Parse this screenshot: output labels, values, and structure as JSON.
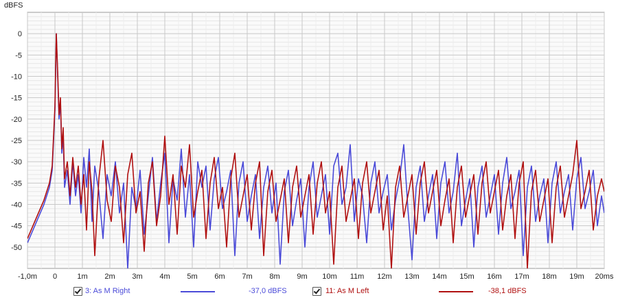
{
  "chart_data": {
    "type": "line",
    "ylabel": "dBFS",
    "xlabel": "",
    "xlim": [
      -1.0,
      20.0
    ],
    "ylim": [
      -55,
      5
    ],
    "x_ticks": [
      -1,
      0,
      1,
      2,
      3,
      4,
      5,
      6,
      7,
      8,
      9,
      10,
      11,
      12,
      13,
      14,
      15,
      16,
      17,
      18,
      19,
      20
    ],
    "x_tick_labels": [
      "-1,0m",
      "0",
      "1m",
      "2m",
      "3m",
      "4m",
      "5m",
      "6m",
      "7m",
      "8m",
      "9m",
      "10m",
      "11m",
      "12m",
      "13m",
      "14m",
      "15m",
      "16m",
      "17m",
      "18m",
      "19m",
      "20ms"
    ],
    "y_ticks": [
      0,
      -5,
      -10,
      -15,
      -20,
      -25,
      -30,
      -35,
      -40,
      -45,
      -50
    ],
    "y_tick_labels": [
      "0",
      "-5",
      "-10",
      "-15",
      "-20",
      "-25",
      "-30",
      "-35",
      "-40",
      "-45",
      "-50"
    ],
    "grid": true,
    "series": [
      {
        "name": "3: As M Right",
        "color": "#4a4ad8",
        "legend_value": "-37,0 dBFS",
        "points": [
          [
            -1.0,
            -49
          ],
          [
            -0.8,
            -46
          ],
          [
            -0.6,
            -43
          ],
          [
            -0.4,
            -40
          ],
          [
            -0.2,
            -36
          ],
          [
            -0.1,
            -32
          ],
          [
            0.0,
            -18
          ],
          [
            0.05,
            0
          ],
          [
            0.1,
            -10
          ],
          [
            0.15,
            -20
          ],
          [
            0.2,
            -16
          ],
          [
            0.25,
            -28
          ],
          [
            0.3,
            -24
          ],
          [
            0.35,
            -36
          ],
          [
            0.45,
            -32
          ],
          [
            0.55,
            -40
          ],
          [
            0.65,
            -30
          ],
          [
            0.75,
            -38
          ],
          [
            0.85,
            -33
          ],
          [
            0.95,
            -42
          ],
          [
            1.05,
            -29
          ],
          [
            1.15,
            -36
          ],
          [
            1.25,
            -27
          ],
          [
            1.35,
            -44
          ],
          [
            1.45,
            -31
          ],
          [
            1.6,
            -37
          ],
          [
            1.75,
            -48
          ],
          [
            1.9,
            -33
          ],
          [
            2.05,
            -38
          ],
          [
            2.2,
            -30
          ],
          [
            2.35,
            -42
          ],
          [
            2.5,
            -35
          ],
          [
            2.65,
            -55
          ],
          [
            2.8,
            -36
          ],
          [
            2.95,
            -41
          ],
          [
            3.1,
            -32
          ],
          [
            3.25,
            -47
          ],
          [
            3.4,
            -38
          ],
          [
            3.55,
            -29
          ],
          [
            3.7,
            -44
          ],
          [
            3.85,
            -35
          ],
          [
            4.0,
            -28
          ],
          [
            4.15,
            -49
          ],
          [
            4.3,
            -34
          ],
          [
            4.45,
            -39
          ],
          [
            4.6,
            -27
          ],
          [
            4.75,
            -43
          ],
          [
            4.9,
            -33
          ],
          [
            5.05,
            -50
          ],
          [
            5.2,
            -30
          ],
          [
            5.35,
            -36
          ],
          [
            5.5,
            -31
          ],
          [
            5.65,
            -46
          ],
          [
            5.8,
            -34
          ],
          [
            5.95,
            -29
          ],
          [
            6.1,
            -41
          ],
          [
            6.25,
            -37
          ],
          [
            6.4,
            -32
          ],
          [
            6.55,
            -52
          ],
          [
            6.7,
            -35
          ],
          [
            6.85,
            -30
          ],
          [
            7.0,
            -44
          ],
          [
            7.15,
            -38
          ],
          [
            7.3,
            -33
          ],
          [
            7.45,
            -48
          ],
          [
            7.6,
            -36
          ],
          [
            7.75,
            -31
          ],
          [
            7.9,
            -42
          ],
          [
            8.05,
            -35
          ],
          [
            8.2,
            -54
          ],
          [
            8.35,
            -37
          ],
          [
            8.5,
            -32
          ],
          [
            8.65,
            -45
          ],
          [
            8.8,
            -39
          ],
          [
            8.95,
            -34
          ],
          [
            9.1,
            -50
          ],
          [
            9.25,
            -36
          ],
          [
            9.4,
            -30
          ],
          [
            9.55,
            -43
          ],
          [
            9.7,
            -38
          ],
          [
            9.85,
            -33
          ],
          [
            10.0,
            -47
          ],
          [
            10.15,
            -31
          ],
          [
            10.3,
            -28
          ],
          [
            10.45,
            -40
          ],
          [
            10.6,
            -36
          ],
          [
            10.75,
            -26
          ],
          [
            10.9,
            -44
          ],
          [
            11.05,
            -34
          ],
          [
            11.2,
            -38
          ],
          [
            11.35,
            -49
          ],
          [
            11.5,
            -35
          ],
          [
            11.65,
            -30
          ],
          [
            11.8,
            -42
          ],
          [
            11.95,
            -37
          ],
          [
            12.1,
            -33
          ],
          [
            12.25,
            -46
          ],
          [
            12.4,
            -39
          ],
          [
            12.55,
            -34
          ],
          [
            12.7,
            -26
          ],
          [
            12.85,
            -41
          ],
          [
            13.0,
            -53
          ],
          [
            13.15,
            -36
          ],
          [
            13.3,
            -31
          ],
          [
            13.45,
            -44
          ],
          [
            13.6,
            -38
          ],
          [
            13.75,
            -33
          ],
          [
            13.9,
            -48
          ],
          [
            14.05,
            -35
          ],
          [
            14.2,
            -30
          ],
          [
            14.35,
            -42
          ],
          [
            14.5,
            -37
          ],
          [
            14.65,
            -28
          ],
          [
            14.8,
            -45
          ],
          [
            14.95,
            -39
          ],
          [
            15.1,
            -34
          ],
          [
            15.25,
            -50
          ],
          [
            15.4,
            -36
          ],
          [
            15.55,
            -31
          ],
          [
            15.7,
            -43
          ],
          [
            15.85,
            -38
          ],
          [
            16.0,
            -33
          ],
          [
            16.15,
            -47
          ],
          [
            16.3,
            -35
          ],
          [
            16.45,
            -29
          ],
          [
            16.6,
            -41
          ],
          [
            16.75,
            -37
          ],
          [
            16.9,
            -32
          ],
          [
            17.05,
            -52
          ],
          [
            17.2,
            -36
          ],
          [
            17.35,
            -31
          ],
          [
            17.5,
            -44
          ],
          [
            17.65,
            -38
          ],
          [
            17.8,
            -34
          ],
          [
            17.95,
            -49
          ],
          [
            18.1,
            -35
          ],
          [
            18.25,
            -30
          ],
          [
            18.4,
            -42
          ],
          [
            18.55,
            -37
          ],
          [
            18.7,
            -33
          ],
          [
            18.85,
            -46
          ],
          [
            19.0,
            -34
          ],
          [
            19.15,
            -29
          ],
          [
            19.3,
            -41
          ],
          [
            19.45,
            -37
          ],
          [
            19.6,
            -32
          ],
          [
            19.75,
            -45
          ],
          [
            19.9,
            -38
          ],
          [
            20.0,
            -42
          ]
        ]
      },
      {
        "name": "11: As M Left",
        "color": "#b01010",
        "legend_value": "-38,1 dBFS",
        "points": [
          [
            -1.0,
            -48
          ],
          [
            -0.8,
            -45
          ],
          [
            -0.6,
            -42
          ],
          [
            -0.4,
            -39
          ],
          [
            -0.2,
            -35
          ],
          [
            -0.1,
            -31
          ],
          [
            0.0,
            -17
          ],
          [
            0.05,
            0
          ],
          [
            0.1,
            -9
          ],
          [
            0.15,
            -19
          ],
          [
            0.2,
            -15
          ],
          [
            0.25,
            -27
          ],
          [
            0.3,
            -22
          ],
          [
            0.35,
            -34
          ],
          [
            0.45,
            -30
          ],
          [
            0.55,
            -38
          ],
          [
            0.65,
            -29
          ],
          [
            0.75,
            -36
          ],
          [
            0.85,
            -31
          ],
          [
            0.95,
            -40
          ],
          [
            1.05,
            -33
          ],
          [
            1.15,
            -46
          ],
          [
            1.25,
            -30
          ],
          [
            1.35,
            -37
          ],
          [
            1.45,
            -52
          ],
          [
            1.6,
            -34
          ],
          [
            1.75,
            -25
          ],
          [
            1.9,
            -39
          ],
          [
            2.05,
            -44
          ],
          [
            2.2,
            -31
          ],
          [
            2.35,
            -36
          ],
          [
            2.5,
            -49
          ],
          [
            2.65,
            -33
          ],
          [
            2.8,
            -28
          ],
          [
            2.95,
            -42
          ],
          [
            3.1,
            -37
          ],
          [
            3.25,
            -51
          ],
          [
            3.4,
            -35
          ],
          [
            3.55,
            -30
          ],
          [
            3.7,
            -45
          ],
          [
            3.85,
            -38
          ],
          [
            4.0,
            -24
          ],
          [
            4.15,
            -40
          ],
          [
            4.3,
            -33
          ],
          [
            4.45,
            -47
          ],
          [
            4.6,
            -31
          ],
          [
            4.75,
            -36
          ],
          [
            4.9,
            -26
          ],
          [
            5.05,
            -43
          ],
          [
            5.2,
            -37
          ],
          [
            5.35,
            -32
          ],
          [
            5.5,
            -48
          ],
          [
            5.65,
            -35
          ],
          [
            5.8,
            -29
          ],
          [
            5.95,
            -41
          ],
          [
            6.1,
            -36
          ],
          [
            6.25,
            -50
          ],
          [
            6.4,
            -34
          ],
          [
            6.55,
            -28
          ],
          [
            6.7,
            -43
          ],
          [
            6.85,
            -38
          ],
          [
            7.0,
            -33
          ],
          [
            7.15,
            -46
          ],
          [
            7.3,
            -35
          ],
          [
            7.45,
            -30
          ],
          [
            7.6,
            -52
          ],
          [
            7.75,
            -37
          ],
          [
            7.9,
            -32
          ],
          [
            8.05,
            -44
          ],
          [
            8.2,
            -39
          ],
          [
            8.35,
            -34
          ],
          [
            8.5,
            -49
          ],
          [
            8.65,
            -36
          ],
          [
            8.8,
            -31
          ],
          [
            8.95,
            -43
          ],
          [
            9.1,
            -38
          ],
          [
            9.25,
            -33
          ],
          [
            9.4,
            -47
          ],
          [
            9.55,
            -35
          ],
          [
            9.7,
            -30
          ],
          [
            9.85,
            -42
          ],
          [
            10.0,
            -37
          ],
          [
            10.15,
            -54
          ],
          [
            10.3,
            -36
          ],
          [
            10.45,
            -31
          ],
          [
            10.6,
            -44
          ],
          [
            10.75,
            -39
          ],
          [
            10.9,
            -34
          ],
          [
            11.05,
            -48
          ],
          [
            11.2,
            -35
          ],
          [
            11.35,
            -30
          ],
          [
            11.5,
            -42
          ],
          [
            11.65,
            -37
          ],
          [
            11.8,
            -32
          ],
          [
            11.95,
            -46
          ],
          [
            12.1,
            -38
          ],
          [
            12.25,
            -55
          ],
          [
            12.4,
            -36
          ],
          [
            12.55,
            -31
          ],
          [
            12.7,
            -43
          ],
          [
            12.85,
            -38
          ],
          [
            13.0,
            -33
          ],
          [
            13.15,
            -47
          ],
          [
            13.3,
            -35
          ],
          [
            13.45,
            -30
          ],
          [
            13.6,
            -42
          ],
          [
            13.75,
            -37
          ],
          [
            13.9,
            -32
          ],
          [
            14.05,
            -45
          ],
          [
            14.2,
            -39
          ],
          [
            14.35,
            -34
          ],
          [
            14.5,
            -49
          ],
          [
            14.65,
            -36
          ],
          [
            14.8,
            -31
          ],
          [
            14.95,
            -43
          ],
          [
            15.1,
            -38
          ],
          [
            15.25,
            -33
          ],
          [
            15.4,
            -47
          ],
          [
            15.55,
            -35
          ],
          [
            15.7,
            -30
          ],
          [
            15.85,
            -42
          ],
          [
            16.0,
            -37
          ],
          [
            16.15,
            -32
          ],
          [
            16.3,
            -46
          ],
          [
            16.45,
            -38
          ],
          [
            16.6,
            -33
          ],
          [
            16.75,
            -48
          ],
          [
            16.9,
            -35
          ],
          [
            17.05,
            -30
          ],
          [
            17.2,
            -55
          ],
          [
            17.35,
            -37
          ],
          [
            17.5,
            -32
          ],
          [
            17.65,
            -44
          ],
          [
            17.8,
            -39
          ],
          [
            17.95,
            -34
          ],
          [
            18.1,
            -49
          ],
          [
            18.25,
            -36
          ],
          [
            18.4,
            -31
          ],
          [
            18.55,
            -43
          ],
          [
            18.7,
            -38
          ],
          [
            18.85,
            -33
          ],
          [
            19.0,
            -25
          ],
          [
            19.15,
            -41
          ],
          [
            19.3,
            -37
          ],
          [
            19.45,
            -32
          ],
          [
            19.6,
            -46
          ],
          [
            19.75,
            -38
          ],
          [
            19.9,
            -34
          ],
          [
            20.0,
            -37
          ]
        ]
      }
    ]
  }
}
